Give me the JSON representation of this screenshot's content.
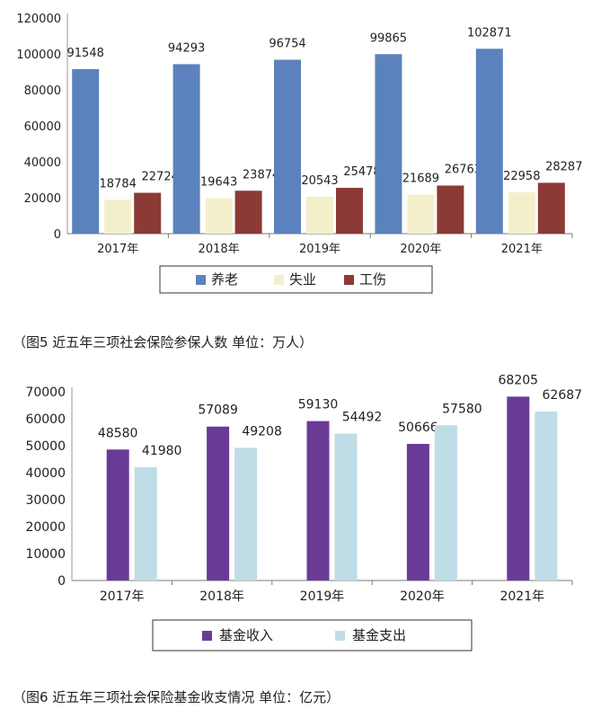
{
  "chart_data": [
    {
      "type": "bar",
      "title": "",
      "categories": [
        "2017年",
        "2018年",
        "2019年",
        "2020年",
        "2021年"
      ],
      "series": [
        {
          "name": "养老",
          "color": "#5b82bd",
          "values": [
            91548,
            94293,
            96754,
            99865,
            102871
          ]
        },
        {
          "name": "失业",
          "color": "#f4efcb",
          "values": [
            18784,
            19643,
            20543,
            21689,
            22958
          ]
        },
        {
          "name": "工伤",
          "color": "#8c3a35",
          "values": [
            22724,
            23874,
            25478,
            26763,
            28287
          ]
        }
      ],
      "ylim": [
        0,
        120000
      ],
      "yticks": [
        "0",
        "20000",
        "40000",
        "60000",
        "80000",
        "100000",
        "120000"
      ],
      "xlabel": "",
      "ylabel": "",
      "legend": "bottom",
      "caption": "（图5 近五年三项社会保险参保人数 单位：万人）"
    },
    {
      "type": "bar",
      "title": "",
      "categories": [
        "2017年",
        "2018年",
        "2019年",
        "2020年",
        "2021年"
      ],
      "series": [
        {
          "name": "基金收入",
          "color": "#6a3b96",
          "values": [
            48580,
            57089,
            59130,
            50666,
            68205
          ]
        },
        {
          "name": "基金支出",
          "color": "#bfdde6",
          "values": [
            41980,
            49208,
            54492,
            57580,
            62687
          ]
        }
      ],
      "ylim": [
        0,
        70000
      ],
      "yticks": [
        "0",
        "10000",
        "20000",
        "30000",
        "40000",
        "50000",
        "60000",
        "70000"
      ],
      "xlabel": "",
      "ylabel": "",
      "legend": "bottom",
      "caption": "（图6 近五年三项社会保险基金收支情况 单位：亿元）"
    }
  ]
}
